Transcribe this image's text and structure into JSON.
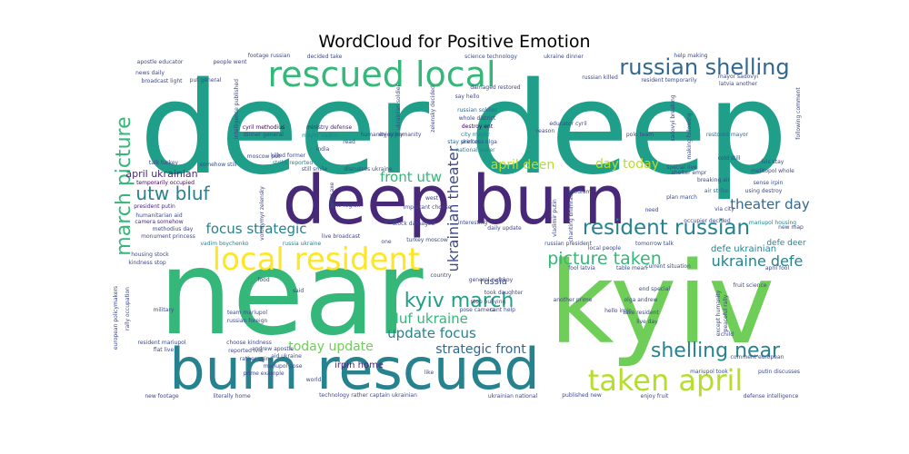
{
  "chart_data": {
    "type": "wordcloud",
    "title": "WordCloud for Positive Emotion",
    "colormap": [
      "#440154",
      "#482878",
      "#3e4989",
      "#31688e",
      "#26828e",
      "#1f9e89",
      "#35b779",
      "#6ece58",
      "#b5de2b",
      "#fde725"
    ],
    "words": [
      {
        "text": "deer deep",
        "weight": 100,
        "color": "#1f9e89"
      },
      {
        "text": "near",
        "weight": 88,
        "color": "#35b779"
      },
      {
        "text": "kyiv",
        "weight": 86,
        "color": "#6ece58"
      },
      {
        "text": "deep burn",
        "weight": 80,
        "color": "#482878"
      },
      {
        "text": "burn rescued",
        "weight": 62,
        "color": "#26828e"
      },
      {
        "text": "rescued local",
        "weight": 48,
        "color": "#35b779"
      },
      {
        "text": "local resident",
        "weight": 46,
        "color": "#fde725"
      },
      {
        "text": "march picture",
        "weight": 34,
        "color": "#35b779"
      },
      {
        "text": "taken april",
        "weight": 34,
        "color": "#b5de2b"
      },
      {
        "text": "russian shelling",
        "weight": 30,
        "color": "#31688e"
      },
      {
        "text": "resident russian",
        "weight": 28,
        "color": "#26828e"
      },
      {
        "text": "shelling near",
        "weight": 26,
        "color": "#26828e"
      },
      {
        "text": "kyiv march",
        "weight": 24,
        "color": "#1f9e89"
      },
      {
        "text": "utw bluf",
        "weight": 22,
        "color": "#26828e"
      },
      {
        "text": "ukrainian theater",
        "weight": 20,
        "color": "#3e4989"
      },
      {
        "text": "picture taken",
        "weight": 20,
        "color": "#35b779"
      },
      {
        "text": "ukraine defe",
        "weight": 18,
        "color": "#26828e"
      },
      {
        "text": "front utw",
        "weight": 18,
        "color": "#35b779"
      },
      {
        "text": "april deen",
        "weight": 17,
        "color": "#b5de2b"
      },
      {
        "text": "day today",
        "weight": 17,
        "color": "#b5de2b"
      },
      {
        "text": "theater day",
        "weight": 16,
        "color": "#31688e"
      },
      {
        "text": "focus strategic",
        "weight": 16,
        "color": "#26828e"
      },
      {
        "text": "bluf ukraine",
        "weight": 16,
        "color": "#35b779"
      },
      {
        "text": "update focus",
        "weight": 16,
        "color": "#26828e"
      },
      {
        "text": "today update",
        "weight": 15,
        "color": "#6ece58"
      },
      {
        "text": "strategic front",
        "weight": 15,
        "color": "#31688e"
      },
      {
        "text": "april ukrainian",
        "weight": 11,
        "color": "#482878"
      },
      {
        "text": "defe ukrainian",
        "weight": 10,
        "color": "#26828e"
      },
      {
        "text": "defe deer",
        "weight": 8,
        "color": "#26828e"
      },
      {
        "text": "russia",
        "weight": 9,
        "color": "#3e4989"
      },
      {
        "text": "irpin home",
        "weight": 9,
        "color": "#482878"
      },
      {
        "text": "russian soldier",
        "weight": 6,
        "color": "#31688e"
      },
      {
        "text": "whole district",
        "weight": 6,
        "color": "#3e4989"
      },
      {
        "text": "destroy ent",
        "weight": 6,
        "color": "#440154"
      },
      {
        "text": "city mayor",
        "weight": 6,
        "color": "#26828e"
      },
      {
        "text": "restored mayor",
        "weight": 6,
        "color": "#31688e"
      },
      {
        "text": "polo team",
        "weight": 6,
        "color": "#3e4989"
      },
      {
        "text": "stay shelter",
        "weight": 6,
        "color": "#31688e"
      },
      {
        "text": "national water",
        "weight": 6,
        "color": "#26828e"
      },
      {
        "text": "reason",
        "weight": 6,
        "color": "#3e4989"
      },
      {
        "text": "melitopol whole",
        "weight": 6,
        "color": "#3e4989"
      },
      {
        "text": "lvis stay",
        "weight": 6,
        "color": "#3e4989"
      },
      {
        "text": "special live",
        "weight": 6,
        "color": "#3e4989"
      },
      {
        "text": "air strike",
        "weight": 6,
        "color": "#31688e"
      },
      {
        "text": "using destroy",
        "weight": 6,
        "color": "#3e4989"
      },
      {
        "text": "plan march",
        "weight": 6,
        "color": "#3e4989"
      },
      {
        "text": "occupier decided",
        "weight": 6,
        "color": "#3e4989"
      },
      {
        "text": "mariupol housing",
        "weight": 6,
        "color": "#26828e"
      },
      {
        "text": "cyril methodius",
        "weight": 6,
        "color": "#440154"
      },
      {
        "text": "ministry defense",
        "weight": 6,
        "color": "#482878"
      },
      {
        "text": "dinner general",
        "weight": 6,
        "color": "#3e4989"
      },
      {
        "text": "mayor vadim",
        "weight": 6,
        "color": "#26828e"
      },
      {
        "text": "talk turkey",
        "weight": 6,
        "color": "#3e4989"
      },
      {
        "text": "somehow still",
        "weight": 6,
        "color": "#3e4989"
      },
      {
        "text": "strike reported",
        "weight": 6,
        "color": "#26828e"
      },
      {
        "text": "killed former",
        "weight": 6,
        "color": "#3e4989"
      },
      {
        "text": "discusses ukraine",
        "weight": 6,
        "color": "#3e4989"
      },
      {
        "text": "temporarily occupied",
        "weight": 6,
        "color": "#440154"
      },
      {
        "text": "president putin",
        "weight": 6,
        "color": "#482878"
      },
      {
        "text": "humanitarian aid",
        "weight": 6,
        "color": "#3e4989"
      },
      {
        "text": "camera somehow",
        "weight": 6,
        "color": "#482878"
      },
      {
        "text": "methodius day",
        "weight": 6,
        "color": "#3e4989"
      },
      {
        "text": "monument princess",
        "weight": 6,
        "color": "#3e4989"
      },
      {
        "text": "vadim boychenko",
        "weight": 6,
        "color": "#26828e"
      },
      {
        "text": "russia ukraine",
        "weight": 6,
        "color": "#26828e"
      },
      {
        "text": "housing stock",
        "weight": 6,
        "color": "#3e4989"
      },
      {
        "text": "kindness stop",
        "weight": 6,
        "color": "#3e4989"
      },
      {
        "text": "stock damaged",
        "weight": 6,
        "color": "#3e4989"
      },
      {
        "text": "turkey moscow",
        "weight": 6,
        "color": "#3e4989"
      },
      {
        "text": "interesting",
        "weight": 6,
        "color": "#3e4989"
      },
      {
        "text": "daily update",
        "weight": 6,
        "color": "#3e4989"
      },
      {
        "text": "general rudskoy",
        "weight": 6,
        "color": "#3e4989"
      },
      {
        "text": "country",
        "weight": 6,
        "color": "#3e4989"
      },
      {
        "text": "took daughter",
        "weight": 6,
        "color": "#3e4989"
      },
      {
        "text": "pose camera",
        "weight": 6,
        "color": "#3e4989"
      },
      {
        "text": "cant help",
        "weight": 6,
        "color": "#3e4989"
      },
      {
        "text": "russian president",
        "weight": 6,
        "color": "#3e4989"
      },
      {
        "text": "local people",
        "weight": 6,
        "color": "#3e4989"
      },
      {
        "text": "current situation",
        "weight": 6,
        "color": "#3e4989"
      },
      {
        "text": "fool latvia",
        "weight": 6,
        "color": "#3e4989"
      },
      {
        "text": "table mean",
        "weight": 6,
        "color": "#3e4989"
      },
      {
        "text": "april fool",
        "weight": 6,
        "color": "#3e4989"
      },
      {
        "text": "take resident",
        "weight": 6,
        "color": "#3e4989"
      },
      {
        "text": "team mariupol",
        "weight": 6,
        "color": "#3e4989"
      },
      {
        "text": "russian foreign",
        "weight": 6,
        "color": "#3e4989"
      },
      {
        "text": "choose kindness",
        "weight": 6,
        "color": "#3e4989"
      },
      {
        "text": "reported lvis",
        "weight": 6,
        "color": "#3e4989"
      },
      {
        "text": "rather using",
        "weight": 6,
        "color": "#3e4989"
      },
      {
        "text": "prime example",
        "weight": 6,
        "color": "#3e4989"
      },
      {
        "text": "world",
        "weight": 6,
        "color": "#3e4989"
      },
      {
        "text": "like",
        "weight": 6,
        "color": "#3e4989"
      },
      {
        "text": "resident mariupol",
        "weight": 6,
        "color": "#3e4989"
      },
      {
        "text": "flat live",
        "weight": 6,
        "color": "#3e4989"
      },
      {
        "text": "aid ukraine",
        "weight": 6,
        "color": "#3e4989"
      },
      {
        "text": "mariupol pose",
        "weight": 6,
        "color": "#3e4989"
      },
      {
        "text": "published new",
        "weight": 6,
        "color": "#3e4989"
      },
      {
        "text": "enjoy fruit",
        "weight": 6,
        "color": "#3e4989"
      },
      {
        "text": "putin discusses",
        "weight": 6,
        "color": "#3e4989"
      },
      {
        "text": "mariupol took",
        "weight": 6,
        "color": "#3e4989"
      },
      {
        "text": "defense intelligence",
        "weight": 6,
        "color": "#3e4989"
      },
      {
        "text": "new footage",
        "weight": 6,
        "color": "#3e4989"
      },
      {
        "text": "literally home",
        "weight": 6,
        "color": "#3e4989"
      },
      {
        "text": "technology rather captain ukrainian",
        "weight": 6,
        "color": "#3e4989"
      },
      {
        "text": "ukrainian national",
        "weight": 6,
        "color": "#3e4989"
      },
      {
        "text": "food",
        "weight": 6,
        "color": "#3e4989"
      },
      {
        "text": "military",
        "weight": 6,
        "color": "#3e4989"
      },
      {
        "text": "european policymakers",
        "weight": 6,
        "color": "#3e4989"
      },
      {
        "text": "rally occupation",
        "weight": 6,
        "color": "#3e4989"
      },
      {
        "text": "decided take",
        "weight": 6,
        "color": "#3e4989"
      },
      {
        "text": "science technology",
        "weight": 6,
        "color": "#3e4989"
      },
      {
        "text": "ukraine dinner",
        "weight": 6,
        "color": "#3e4989"
      },
      {
        "text": "help making",
        "weight": 6,
        "color": "#3e4989"
      },
      {
        "text": "people went",
        "weight": 6,
        "color": "#3e4989"
      },
      {
        "text": "footage russian",
        "weight": 6,
        "color": "#3e4989"
      },
      {
        "text": "news daily",
        "weight": 6,
        "color": "#3e4989"
      },
      {
        "text": "put general",
        "weight": 6,
        "color": "#3e4989"
      },
      {
        "text": "russian killed",
        "weight": 6,
        "color": "#3e4989"
      },
      {
        "text": "resident temporarily",
        "weight": 6,
        "color": "#3e4989"
      },
      {
        "text": "mayor sadovyi",
        "weight": 6,
        "color": "#3e4989"
      },
      {
        "text": "latvia another",
        "weight": 6,
        "color": "#3e4989"
      },
      {
        "text": "damaged restored",
        "weight": 6,
        "color": "#3e4989"
      },
      {
        "text": "say hello",
        "weight": 6,
        "color": "#3e4989"
      },
      {
        "text": "educator cyril",
        "weight": 6,
        "color": "#3e4989"
      },
      {
        "text": "princess olga",
        "weight": 6,
        "color": "#3e4989"
      },
      {
        "text": "moscow put",
        "weight": 6,
        "color": "#3e4989"
      },
      {
        "text": "kyiv region",
        "weight": 6,
        "color": "#3e4989"
      },
      {
        "text": "live broadcast",
        "weight": 6,
        "color": "#3e4989"
      },
      {
        "text": "important choose",
        "weight": 6,
        "color": "#3e4989"
      },
      {
        "text": "west",
        "weight": 6,
        "color": "#3e4989"
      },
      {
        "text": "stop bullying",
        "weight": 6,
        "color": "#3e4989"
      },
      {
        "text": "tomorrow talk",
        "weight": 6,
        "color": "#3e4989"
      },
      {
        "text": "good",
        "weight": 6,
        "color": "#3e4989"
      },
      {
        "text": "need",
        "weight": 6,
        "color": "#3e4989"
      },
      {
        "text": "medium",
        "weight": 6,
        "color": "#3e4989"
      },
      {
        "text": "shelter empr",
        "weight": 6,
        "color": "#3e4989"
      },
      {
        "text": "via city",
        "weight": 6,
        "color": "#3e4989"
      },
      {
        "text": "breaking air",
        "weight": 6,
        "color": "#3e4989"
      },
      {
        "text": "end special",
        "weight": 6,
        "color": "#3e4989"
      },
      {
        "text": "fruit science",
        "weight": 6,
        "color": "#3e4989"
      },
      {
        "text": "olga andrew",
        "weight": 6,
        "color": "#3e4989"
      },
      {
        "text": "hello irpin",
        "weight": 6,
        "color": "#3e4989"
      },
      {
        "text": "another prime",
        "weight": 6,
        "color": "#3e4989"
      },
      {
        "text": "live day",
        "weight": 6,
        "color": "#3e4989"
      },
      {
        "text": "child",
        "weight": 6,
        "color": "#3e4989"
      },
      {
        "text": "comment european",
        "weight": 6,
        "color": "#3e4989"
      },
      {
        "text": "new map",
        "weight": 6,
        "color": "#3e4989"
      },
      {
        "text": "apostle educator",
        "weight": 6,
        "color": "#3e4989"
      },
      {
        "text": "broadcast light",
        "weight": 6,
        "color": "#3e4989"
      },
      {
        "text": "intelligence published",
        "weight": 6,
        "color": "#3e4989"
      },
      {
        "text": "enjoy humanity",
        "weight": 6,
        "color": "#3e4989"
      },
      {
        "text": "zelensky decided",
        "weight": 6,
        "color": "#3e4989"
      },
      {
        "text": "vladimir putin",
        "weight": 6,
        "color": "#3e4989"
      },
      {
        "text": "chanting bhimrao",
        "weight": 6,
        "color": "#3e4989"
      },
      {
        "text": "sadovyi breaking",
        "weight": 6,
        "color": "#3e4989"
      },
      {
        "text": "making following",
        "weight": 6,
        "color": "#3e4989"
      },
      {
        "text": "ukrainian soldier",
        "weight": 6,
        "color": "#3e4989"
      },
      {
        "text": "volodymyr zelensky",
        "weight": 6,
        "color": "#3e4989"
      },
      {
        "text": "andrew apostle",
        "weight": 6,
        "color": "#3e4989"
      },
      {
        "text": "empr axe",
        "weight": 6,
        "color": "#3e4989"
      },
      {
        "text": "following comment",
        "weight": 6,
        "color": "#3e4989"
      },
      {
        "text": "sense irpin",
        "weight": 6,
        "color": "#3e4989"
      },
      {
        "text": "cold still",
        "weight": 6,
        "color": "#3e4989"
      },
      {
        "text": "except humanity",
        "weight": 6,
        "color": "#3e4989"
      },
      {
        "text": "peaceful rally",
        "weight": 6,
        "color": "#3e4989"
      },
      {
        "text": "still smile",
        "weight": 6,
        "color": "#3e4989"
      },
      {
        "text": "humanity enjoy",
        "weight": 6,
        "color": "#3e4989"
      },
      {
        "text": "read",
        "weight": 6,
        "color": "#3e4989"
      },
      {
        "text": "india",
        "weight": 6,
        "color": "#3e4989"
      },
      {
        "text": "said",
        "weight": 6,
        "color": "#3e4989"
      },
      {
        "text": "one",
        "weight": 6,
        "color": "#3e4989"
      }
    ]
  }
}
